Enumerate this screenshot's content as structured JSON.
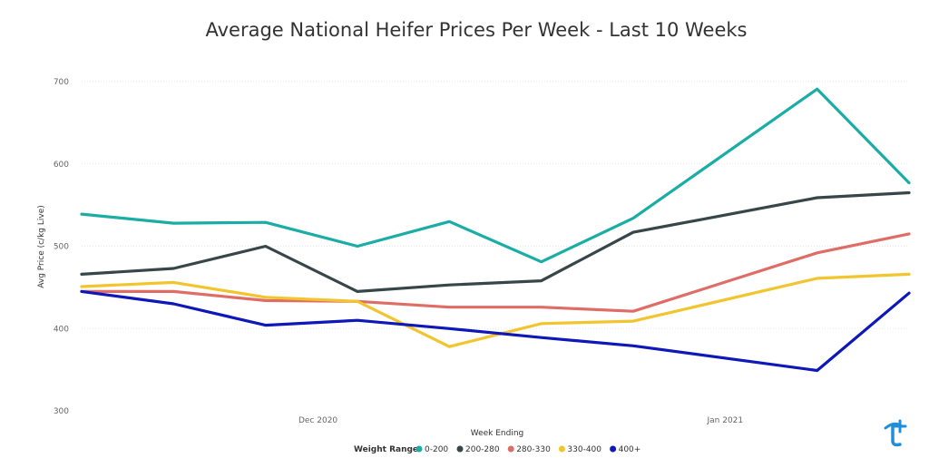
{
  "chart_data": {
    "type": "line",
    "title": "Average National Heifer Prices Per Week - Last 10 Weeks",
    "xlabel": "Week Ending",
    "ylabel": "Avg Price (c/kg Live)",
    "ylim": [
      300,
      700
    ],
    "yticks": [
      300,
      400,
      500,
      600,
      700
    ],
    "grid": true,
    "legend_title": "Weight Range",
    "legend_position": "bottom",
    "x_tick_labels": [
      "Dec 2020",
      "Jan 2021"
    ],
    "x": [
      "2020-11-13",
      "2020-11-20",
      "2020-11-27",
      "2020-12-04",
      "2020-12-11",
      "2020-12-18",
      "2020-12-25",
      "2021-01-08",
      "2021-01-15"
    ],
    "series": [
      {
        "name": "0-200",
        "color": "#1AADA5",
        "values": [
          539,
          528,
          529,
          500,
          530,
          481,
          534,
          691,
          577
        ]
      },
      {
        "name": "200-280",
        "color": "#374649",
        "values": [
          466,
          473,
          500,
          445,
          453,
          458,
          517,
          559,
          565
        ]
      },
      {
        "name": "280-330",
        "color": "#E06C66",
        "values": [
          445,
          445,
          434,
          433,
          426,
          426,
          421,
          492,
          515
        ]
      },
      {
        "name": "330-400",
        "color": "#F2C52E",
        "values": [
          451,
          456,
          438,
          433,
          378,
          406,
          409,
          461,
          466
        ]
      },
      {
        "name": "400+",
        "color": "#0E17B8",
        "values": [
          445,
          430,
          404,
          410,
          400,
          389,
          379,
          349,
          443
        ]
      }
    ]
  },
  "logo": {
    "name": "brand-logo-icon",
    "color": "#1E90D8"
  }
}
